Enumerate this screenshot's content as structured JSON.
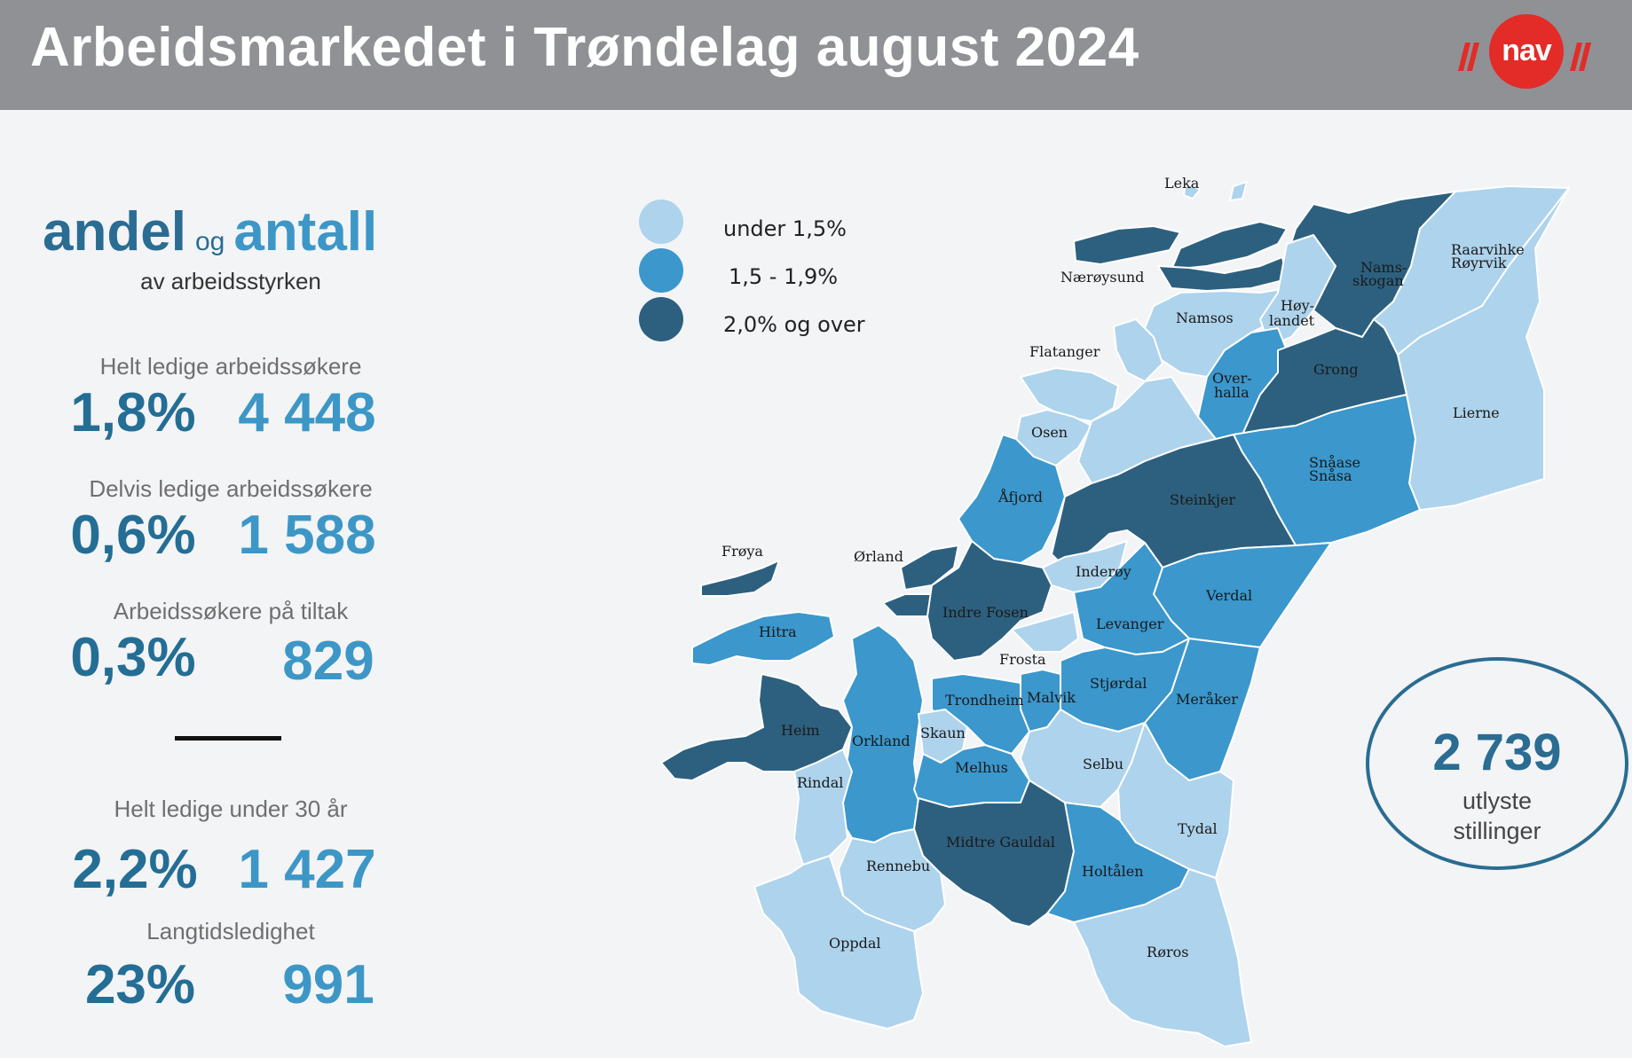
{
  "header": {
    "title": "Arbeidsmarkedet i Trøndelag august 2024",
    "logo_text": "nav",
    "background_color": "#8f9195",
    "logo_color": "#e32b27"
  },
  "intro": {
    "word1": "andel",
    "connector": "og",
    "word2": "antall",
    "subtitle": "av arbeidsstyrken"
  },
  "stats": [
    {
      "label": "Helt ledige arbeidssøkere",
      "percent": "1,8%",
      "count": "4 448"
    },
    {
      "label": "Delvis ledige arbeidssøkere",
      "percent": "0,6%",
      "count": "1 588"
    },
    {
      "label": "Arbeidssøkere på tiltak",
      "percent": "0,3%",
      "count": "829"
    },
    {
      "label": "Helt ledige under 30 år",
      "percent": "2,2%",
      "count": "1 427"
    },
    {
      "label": "Langtidsledighet",
      "percent": "23%",
      "count": "991"
    }
  ],
  "legend": [
    {
      "label": "under 1,5%",
      "color": "#aed3ec"
    },
    {
      "label": "1,5 - 1,9%",
      "color": "#3b97cc"
    },
    {
      "label": "2,0% og over",
      "color": "#2d607f"
    }
  ],
  "map": {
    "regions": [
      {
        "name": "Leka",
        "class": "under 1,5%"
      },
      {
        "name": "Nærøysund",
        "class": "2,0% og over"
      },
      {
        "name": "Namsos",
        "class": "under 1,5%"
      },
      {
        "name": "Høy-landet",
        "class": "under 1,5%"
      },
      {
        "name": "Namsskogan",
        "class": "2,0% og over"
      },
      {
        "name": "Raarvihke Røyrvik",
        "class": "under 1,5%"
      },
      {
        "name": "Flatanger",
        "class": "under 1,5%"
      },
      {
        "name": "Overhalla",
        "class": "1,5 - 1,9%"
      },
      {
        "name": "Grong",
        "class": "2,0% og over"
      },
      {
        "name": "Lierne",
        "class": "under 1,5%"
      },
      {
        "name": "Osen",
        "class": "under 1,5%"
      },
      {
        "name": "Snåase Snåsa",
        "class": "1,5 - 1,9%"
      },
      {
        "name": "Åfjord",
        "class": "1,5 - 1,9%"
      },
      {
        "name": "Steinkjer",
        "class": "2,0% og over"
      },
      {
        "name": "Frøya",
        "class": "2,0% og over"
      },
      {
        "name": "Ørland",
        "class": "2,0% og over"
      },
      {
        "name": "Inderøy",
        "class": "under 1,5%"
      },
      {
        "name": "Verdal",
        "class": "1,5 - 1,9%"
      },
      {
        "name": "Indre Fosen",
        "class": "2,0% og over"
      },
      {
        "name": "Hitra",
        "class": "1,5 - 1,9%"
      },
      {
        "name": "Levanger",
        "class": "1,5 - 1,9%"
      },
      {
        "name": "Frosta",
        "class": "under 1,5%"
      },
      {
        "name": "Stjørdal",
        "class": "1,5 - 1,9%"
      },
      {
        "name": "Meråker",
        "class": "1,5 - 1,9%"
      },
      {
        "name": "Trondheim",
        "class": "1,5 - 1,9%"
      },
      {
        "name": "Malvik",
        "class": "1,5 - 1,9%"
      },
      {
        "name": "Heim",
        "class": "2,0% og over"
      },
      {
        "name": "Orkland",
        "class": "1,5 - 1,9%"
      },
      {
        "name": "Skaun",
        "class": "under 1,5%"
      },
      {
        "name": "Selbu",
        "class": "under 1,5%"
      },
      {
        "name": "Melhus",
        "class": "1,5 - 1,9%"
      },
      {
        "name": "Rindal",
        "class": "under 1,5%"
      },
      {
        "name": "Tydal",
        "class": "under 1,5%"
      },
      {
        "name": "Midtre Gauldal",
        "class": "2,0% og over"
      },
      {
        "name": "Rennebu",
        "class": "under 1,5%"
      },
      {
        "name": "Holtålen",
        "class": "1,5 - 1,9%"
      },
      {
        "name": "Oppdal",
        "class": "under 1,5%"
      },
      {
        "name": "Røros",
        "class": "under 1,5%"
      }
    ]
  },
  "jobs": {
    "count": "2 739",
    "label_line1": "utlyste",
    "label_line2": "stillinger"
  }
}
